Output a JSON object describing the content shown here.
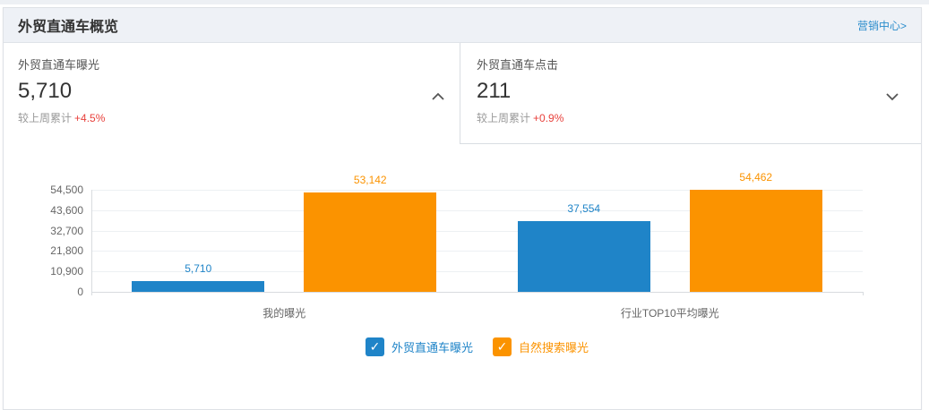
{
  "header": {
    "title": "外贸直通车概览",
    "link_label": "营销中心>"
  },
  "cards": [
    {
      "label": "外贸直通车曝光",
      "value": "5,710",
      "compare_label": "较上周累计",
      "compare_delta": "+4.5%",
      "chevron": "up"
    },
    {
      "label": "外贸直通车点击",
      "value": "211",
      "compare_label": "较上周累计",
      "compare_delta": "+0.9%",
      "chevron": "down"
    }
  ],
  "colors": {
    "link_blue": "#2a8ccc",
    "delta_red": "#e8413c",
    "series_blue": "#1f84c8",
    "series_orange": "#fb9300"
  },
  "icons": {
    "check": "✓"
  },
  "chart_data": {
    "type": "bar",
    "title": "",
    "categories": [
      "我的曝光",
      "行业TOP10平均曝光"
    ],
    "series": [
      {
        "name": "外贸直通车曝光",
        "color": "#1f84c8",
        "values": [
          5710,
          37554
        ],
        "labels": [
          "5,710",
          "37,554"
        ]
      },
      {
        "name": "自然搜索曝光",
        "color": "#fb9300",
        "values": [
          53142,
          54462
        ],
        "labels": [
          "53,142",
          "54,462"
        ]
      }
    ],
    "ylim": [
      0,
      54500
    ],
    "yticks": [
      0,
      10900,
      21800,
      32700,
      43600,
      54500
    ],
    "ytick_labels": [
      "0",
      "10,900",
      "21,800",
      "32,700",
      "43,600",
      "54,500"
    ],
    "grid": true,
    "legend_position": "bottom",
    "legend": [
      {
        "label": "外贸直通车曝光",
        "color": "#1f84c8",
        "checked": true
      },
      {
        "label": "自然搜索曝光",
        "color": "#fb9300",
        "checked": true
      }
    ]
  }
}
